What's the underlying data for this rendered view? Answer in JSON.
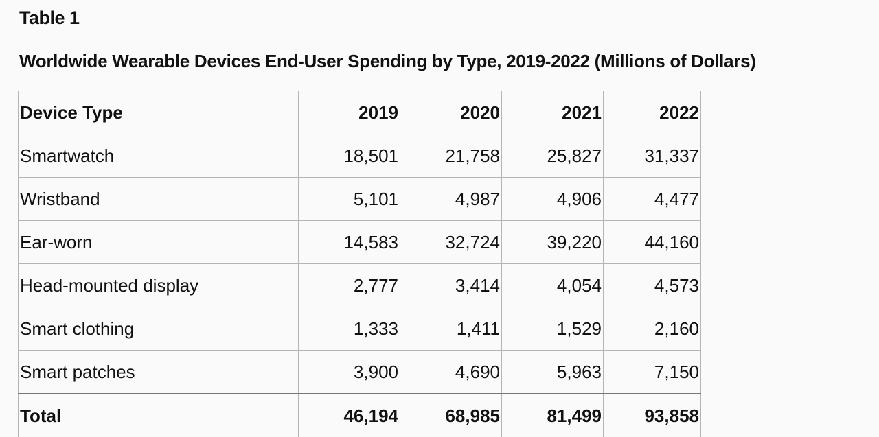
{
  "label": "Table 1",
  "title": "Worldwide Wearable Devices End-User Spending by Type, 2019-2022 (Millions of Dollars)",
  "table": {
    "headers": [
      "Device Type",
      "2019",
      "2020",
      "2021",
      "2022"
    ],
    "rows": [
      [
        "Smartwatch",
        "18,501",
        "21,758",
        "25,827",
        "31,337"
      ],
      [
        "Wristband",
        "5,101",
        "4,987",
        "4,906",
        "4,477"
      ],
      [
        "Ear-worn",
        "14,583",
        "32,724",
        "39,220",
        "44,160"
      ],
      [
        "Head-mounted display",
        "2,777",
        "3,414",
        "4,054",
        "4,573"
      ],
      [
        "Smart clothing",
        "1,333",
        "1,411",
        "1,529",
        "2,160"
      ],
      [
        "Smart patches",
        "3,900",
        "4,690",
        "5,963",
        "7,150"
      ]
    ],
    "total": [
      "Total",
      "46,194",
      "68,985",
      "81,499",
      "93,858"
    ]
  }
}
